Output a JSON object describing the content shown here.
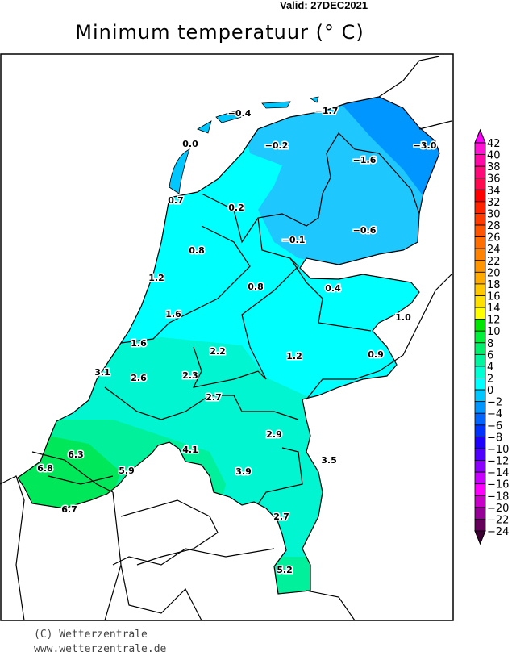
{
  "header": {
    "valid": "Valid: 27DEC2021",
    "title": "Minimum temperatuur (° C)"
  },
  "map": {
    "region": "Netherlands",
    "fill_colors": {
      "below_-2": "#0096ff",
      "-2_0": "#1ec8ff",
      "0_2": "#00ffff",
      "2_4": "#00f5d0",
      "4_6": "#00f09c",
      "6_8": "#00e85a"
    },
    "stations": [
      "-0.4",
      "-1.7",
      "0.0",
      "-0.2",
      "-1.6",
      "-3.0",
      "0.7",
      "0.2",
      "-0.1",
      "-0.6",
      "0.8",
      "1.2",
      "0.8",
      "0.4",
      "1.6",
      "1.0",
      "1.6",
      "2.2",
      "1.2",
      "0.9",
      "3.1",
      "2.6",
      "2.3",
      "2.7",
      "2.9",
      "4.1",
      "6.3",
      "6.8",
      "5.9",
      "3.9",
      "3.5",
      "6.7",
      "2.7",
      "5.2"
    ]
  },
  "legend": {
    "unit": "° C",
    "labels": [
      "42",
      "40",
      "38",
      "36",
      "34",
      "32",
      "30",
      "28",
      "26",
      "24",
      "22",
      "20",
      "18",
      "16",
      "14",
      "12",
      "10",
      "8",
      "6",
      "4",
      "2",
      "0",
      "−2",
      "−4",
      "−6",
      "−8",
      "−10",
      "−12",
      "−14",
      "−16",
      "−18",
      "−20",
      "−22",
      "−24"
    ],
    "colors": [
      "#ff14d2",
      "#ff0aa5",
      "#ff0a78",
      "#ff0a50",
      "#ff0000",
      "#ff2300",
      "#ff3c00",
      "#ff5500",
      "#ff6e00",
      "#ff8200",
      "#ff9600",
      "#ffaa00",
      "#ffc800",
      "#ffe100",
      "#ffff00",
      "#00e600",
      "#00f03c",
      "#00f06e",
      "#00f5a0",
      "#00ffd2",
      "#00ffff",
      "#00c8ff",
      "#0096ff",
      "#0064ff",
      "#0032ff",
      "#1e00ff",
      "#5000ff",
      "#8c00ff",
      "#c800ff",
      "#ff00ff",
      "#c800c8",
      "#960096",
      "#64005a"
    ],
    "top_arrow_color": "#ff00ff",
    "bottom_arrow_color": "#3c0032"
  },
  "footer": {
    "copyright": "(C) Wetterzentrale",
    "url": "www.wetterzentrale.de"
  }
}
